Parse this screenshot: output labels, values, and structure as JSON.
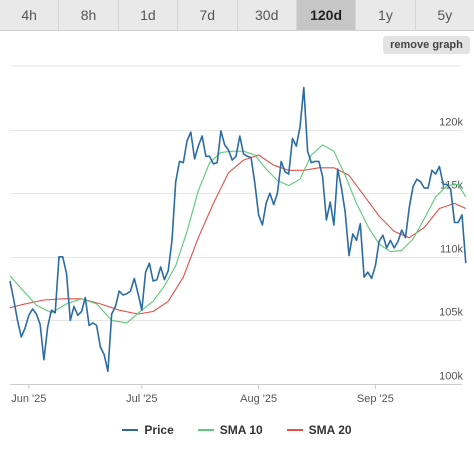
{
  "range_tabs": [
    {
      "label": "4h",
      "active": false
    },
    {
      "label": "8h",
      "active": false
    },
    {
      "label": "1d",
      "active": false
    },
    {
      "label": "7d",
      "active": false
    },
    {
      "label": "30d",
      "active": false
    },
    {
      "label": "120d",
      "active": true
    },
    {
      "label": "1y",
      "active": false
    },
    {
      "label": "5y",
      "active": false
    }
  ],
  "remove_graph_label": "remove graph",
  "colors": {
    "price": "#2b6ca3",
    "sma10": "#5cc97a",
    "sma20": "#e2504a"
  },
  "chart_data": {
    "type": "line",
    "x_start": "2025-05-27",
    "x_end": "2025-09-24",
    "ylim": [
      100000,
      125000
    ],
    "yticks": [
      {
        "value": 100000,
        "label": "100k"
      },
      {
        "value": 105000,
        "label": "105k"
      },
      {
        "value": 110000,
        "label": "110k"
      },
      {
        "value": 115000,
        "label": "115k"
      },
      {
        "value": 120000,
        "label": "120k"
      }
    ],
    "xticks": [
      {
        "date": "2025-06-01",
        "label": "Jun '25"
      },
      {
        "date": "2025-07-01",
        "label": "Jul '25"
      },
      {
        "date": "2025-08-01",
        "label": "Aug '25"
      },
      {
        "date": "2025-09-01",
        "label": "Sep '25"
      }
    ],
    "grid": true,
    "legend_position": "bottom",
    "series": [
      {
        "name": "Price",
        "color_key": "price",
        "points": [
          [
            "2025-05-27",
            108100
          ],
          [
            "2025-05-28",
            106600
          ],
          [
            "2025-05-29",
            105000
          ],
          [
            "2025-05-30",
            103700
          ],
          [
            "2025-05-31",
            104400
          ],
          [
            "2025-06-01",
            105400
          ],
          [
            "2025-06-02",
            105900
          ],
          [
            "2025-06-03",
            105500
          ],
          [
            "2025-06-04",
            104700
          ],
          [
            "2025-06-05",
            101900
          ],
          [
            "2025-06-06",
            104500
          ],
          [
            "2025-06-07",
            105800
          ],
          [
            "2025-06-08",
            105600
          ],
          [
            "2025-06-09",
            110000
          ],
          [
            "2025-06-10",
            110000
          ],
          [
            "2025-06-11",
            108700
          ],
          [
            "2025-06-12",
            105000
          ],
          [
            "2025-06-13",
            106100
          ],
          [
            "2025-06-14",
            105400
          ],
          [
            "2025-06-15",
            105700
          ],
          [
            "2025-06-16",
            106800
          ],
          [
            "2025-06-17",
            104600
          ],
          [
            "2025-06-18",
            104800
          ],
          [
            "2025-06-19",
            104600
          ],
          [
            "2025-06-20",
            102900
          ],
          [
            "2025-06-21",
            102300
          ],
          [
            "2025-06-22",
            101000
          ],
          [
            "2025-06-23",
            105500
          ],
          [
            "2025-06-24",
            106100
          ],
          [
            "2025-06-25",
            107300
          ],
          [
            "2025-06-26",
            107000
          ],
          [
            "2025-06-27",
            107100
          ],
          [
            "2025-06-28",
            107300
          ],
          [
            "2025-06-29",
            108300
          ],
          [
            "2025-06-30",
            107100
          ],
          [
            "2025-07-01",
            105800
          ],
          [
            "2025-07-02",
            108800
          ],
          [
            "2025-07-03",
            109500
          ],
          [
            "2025-07-04",
            108100
          ],
          [
            "2025-07-05",
            108200
          ],
          [
            "2025-07-06",
            109200
          ],
          [
            "2025-07-07",
            108200
          ],
          [
            "2025-07-08",
            108900
          ],
          [
            "2025-07-09",
            111300
          ],
          [
            "2025-07-10",
            115900
          ],
          [
            "2025-07-11",
            117500
          ],
          [
            "2025-07-12",
            117400
          ],
          [
            "2025-07-13",
            119100
          ],
          [
            "2025-07-14",
            119800
          ],
          [
            "2025-07-15",
            117700
          ],
          [
            "2025-07-16",
            118700
          ],
          [
            "2025-07-17",
            119500
          ],
          [
            "2025-07-18",
            117900
          ],
          [
            "2025-07-19",
            117900
          ],
          [
            "2025-07-20",
            117300
          ],
          [
            "2025-07-21",
            117400
          ],
          [
            "2025-07-22",
            119900
          ],
          [
            "2025-07-23",
            118800
          ],
          [
            "2025-07-24",
            118400
          ],
          [
            "2025-07-25",
            117600
          ],
          [
            "2025-07-26",
            117900
          ],
          [
            "2025-07-27",
            119500
          ],
          [
            "2025-07-28",
            118100
          ],
          [
            "2025-07-29",
            117900
          ],
          [
            "2025-07-30",
            117800
          ],
          [
            "2025-07-31",
            115800
          ],
          [
            "2025-08-01",
            113300
          ],
          [
            "2025-08-02",
            112500
          ],
          [
            "2025-08-03",
            114200
          ],
          [
            "2025-08-04",
            115000
          ],
          [
            "2025-08-05",
            114100
          ],
          [
            "2025-08-06",
            115000
          ],
          [
            "2025-08-07",
            117500
          ],
          [
            "2025-08-08",
            116700
          ],
          [
            "2025-08-09",
            116500
          ],
          [
            "2025-08-10",
            119300
          ],
          [
            "2025-08-11",
            118700
          ],
          [
            "2025-08-12",
            120200
          ],
          [
            "2025-08-13",
            123300
          ],
          [
            "2025-08-14",
            118300
          ],
          [
            "2025-08-15",
            117400
          ],
          [
            "2025-08-16",
            117500
          ],
          [
            "2025-08-17",
            117500
          ],
          [
            "2025-08-18",
            116300
          ],
          [
            "2025-08-19",
            112900
          ],
          [
            "2025-08-20",
            114300
          ],
          [
            "2025-08-21",
            112500
          ],
          [
            "2025-08-22",
            116900
          ],
          [
            "2025-08-23",
            115400
          ],
          [
            "2025-08-24",
            113500
          ],
          [
            "2025-08-25",
            110100
          ],
          [
            "2025-08-26",
            111800
          ],
          [
            "2025-08-27",
            111300
          ],
          [
            "2025-08-28",
            112600
          ],
          [
            "2025-08-29",
            108400
          ],
          [
            "2025-08-30",
            108800
          ],
          [
            "2025-08-31",
            108300
          ],
          [
            "2025-09-01",
            109300
          ],
          [
            "2025-09-02",
            111200
          ],
          [
            "2025-09-03",
            111700
          ],
          [
            "2025-09-04",
            110700
          ],
          [
            "2025-09-05",
            111300
          ],
          [
            "2025-09-06",
            110700
          ],
          [
            "2025-09-07",
            111200
          ],
          [
            "2025-09-08",
            112100
          ],
          [
            "2025-09-09",
            111500
          ],
          [
            "2025-09-10",
            113900
          ],
          [
            "2025-09-11",
            115500
          ],
          [
            "2025-09-12",
            116100
          ],
          [
            "2025-09-13",
            115900
          ],
          [
            "2025-09-14",
            115400
          ],
          [
            "2025-09-15",
            115400
          ],
          [
            "2025-09-16",
            116800
          ],
          [
            "2025-09-17",
            116500
          ],
          [
            "2025-09-18",
            117100
          ],
          [
            "2025-09-19",
            115700
          ],
          [
            "2025-09-20",
            115700
          ],
          [
            "2025-09-21",
            115300
          ],
          [
            "2025-09-22",
            112700
          ],
          [
            "2025-09-23",
            112700
          ],
          [
            "2025-09-24",
            113300
          ],
          [
            "2025-09-25",
            109500
          ]
        ]
      },
      {
        "name": "SMA 10",
        "color_key": "sma10",
        "points": [
          [
            "2025-05-27",
            108500
          ],
          [
            "2025-05-30",
            107500
          ],
          [
            "2025-06-03",
            106200
          ],
          [
            "2025-06-07",
            105600
          ],
          [
            "2025-06-11",
            106300
          ],
          [
            "2025-06-15",
            106700
          ],
          [
            "2025-06-19",
            106300
          ],
          [
            "2025-06-23",
            105000
          ],
          [
            "2025-06-27",
            104800
          ],
          [
            "2025-07-01",
            105800
          ],
          [
            "2025-07-04",
            106500
          ],
          [
            "2025-07-07",
            107700
          ],
          [
            "2025-07-10",
            109300
          ],
          [
            "2025-07-13",
            112000
          ],
          [
            "2025-07-16",
            115200
          ],
          [
            "2025-07-19",
            117400
          ],
          [
            "2025-07-22",
            118200
          ],
          [
            "2025-07-25",
            118300
          ],
          [
            "2025-07-28",
            118300
          ],
          [
            "2025-07-31",
            118000
          ],
          [
            "2025-08-03",
            116900
          ],
          [
            "2025-08-06",
            116000
          ],
          [
            "2025-08-09",
            115600
          ],
          [
            "2025-08-12",
            116100
          ],
          [
            "2025-08-15",
            118000
          ],
          [
            "2025-08-18",
            118800
          ],
          [
            "2025-08-21",
            118300
          ],
          [
            "2025-08-24",
            116400
          ],
          [
            "2025-08-27",
            114200
          ],
          [
            "2025-08-30",
            112400
          ],
          [
            "2025-09-02",
            111000
          ],
          [
            "2025-09-05",
            110400
          ],
          [
            "2025-09-08",
            110500
          ],
          [
            "2025-09-11",
            111400
          ],
          [
            "2025-09-14",
            113000
          ],
          [
            "2025-09-17",
            114700
          ],
          [
            "2025-09-20",
            115600
          ],
          [
            "2025-09-23",
            115700
          ],
          [
            "2025-09-25",
            114700
          ]
        ]
      },
      {
        "name": "SMA 20",
        "color_key": "sma20",
        "points": [
          [
            "2025-05-27",
            106000
          ],
          [
            "2025-05-31",
            106300
          ],
          [
            "2025-06-05",
            106600
          ],
          [
            "2025-06-10",
            106700
          ],
          [
            "2025-06-15",
            106700
          ],
          [
            "2025-06-20",
            106300
          ],
          [
            "2025-06-25",
            105800
          ],
          [
            "2025-06-30",
            105500
          ],
          [
            "2025-07-04",
            105700
          ],
          [
            "2025-07-08",
            106500
          ],
          [
            "2025-07-12",
            108400
          ],
          [
            "2025-07-16",
            111500
          ],
          [
            "2025-07-20",
            114200
          ],
          [
            "2025-07-24",
            116600
          ],
          [
            "2025-07-28",
            117600
          ],
          [
            "2025-08-01",
            118000
          ],
          [
            "2025-08-05",
            117200
          ],
          [
            "2025-08-09",
            116800
          ],
          [
            "2025-08-13",
            116800
          ],
          [
            "2025-08-17",
            117000
          ],
          [
            "2025-08-21",
            117000
          ],
          [
            "2025-08-25",
            116400
          ],
          [
            "2025-08-29",
            114800
          ],
          [
            "2025-09-02",
            113200
          ],
          [
            "2025-09-06",
            112000
          ],
          [
            "2025-09-10",
            111500
          ],
          [
            "2025-09-14",
            112300
          ],
          [
            "2025-09-18",
            113800
          ],
          [
            "2025-09-22",
            114200
          ],
          [
            "2025-09-25",
            113800
          ]
        ]
      }
    ]
  }
}
